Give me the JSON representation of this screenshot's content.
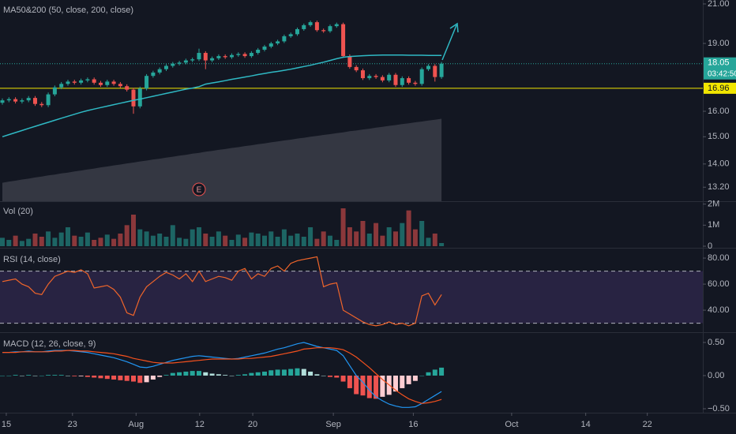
{
  "x_axis": {
    "xlim": [
      -0.36,
      106.87
    ],
    "xticks": [
      {
        "value": 0.6,
        "label": "15"
      },
      {
        "value": 10.7,
        "label": "23"
      },
      {
        "value": 20.4,
        "label": "Aug"
      },
      {
        "value": 30.1,
        "label": "12"
      },
      {
        "value": 38.2,
        "label": "20"
      },
      {
        "value": 50.5,
        "label": "Sep"
      },
      {
        "value": 62.7,
        "label": "16"
      },
      {
        "value": 77.7,
        "label": "Oct"
      },
      {
        "value": 89,
        "label": "14"
      },
      {
        "value": 98.4,
        "label": "22"
      }
    ]
  },
  "chart_data": [
    {
      "type": "candlestick",
      "title": "MA50&200 (50, close, 200, close)",
      "log_scale": true,
      "up_color": "#26a69a",
      "down_color": "#ef5350",
      "ylim": [
        12.74,
        21.21
      ],
      "yticks": [
        {
          "value": 21,
          "label": "21.00"
        },
        {
          "value": 19,
          "label": "19.00"
        },
        {
          "value": 16,
          "label": "16.00"
        },
        {
          "value": 15,
          "label": "15.00"
        },
        {
          "value": 14,
          "label": "14.00"
        },
        {
          "value": 13.2,
          "label": "13.20"
        }
      ],
      "open": [
        16.35,
        16.45,
        16.5,
        16.4,
        16.45,
        16.55,
        16.3,
        16.25,
        16.7,
        17.0,
        17.15,
        17.25,
        17.2,
        17.3,
        17.35,
        17.2,
        17.1,
        17.25,
        17.15,
        17.05,
        16.9,
        16.2,
        16.95,
        17.5,
        17.65,
        17.8,
        17.95,
        18.05,
        18.1,
        18.2,
        18.25,
        18.55,
        18.2,
        18.3,
        18.4,
        18.35,
        18.45,
        18.5,
        18.4,
        18.55,
        18.7,
        18.85,
        19.0,
        19.1,
        19.35,
        19.45,
        19.7,
        19.9,
        20.05,
        19.65,
        19.6,
        19.85,
        19.95,
        18.4,
        17.9,
        17.75,
        17.4,
        17.5,
        17.45,
        17.3,
        17.55,
        17.1,
        17.4,
        17.2,
        17.15,
        17.8,
        17.95,
        17.45
      ],
      "high": [
        16.53,
        16.58,
        16.58,
        16.53,
        16.63,
        16.63,
        16.38,
        16.78,
        17.08,
        17.23,
        17.33,
        17.33,
        17.38,
        17.43,
        17.43,
        17.28,
        17.33,
        17.33,
        17.23,
        17.13,
        16.98,
        17.03,
        17.58,
        17.73,
        17.88,
        18.03,
        18.13,
        18.18,
        18.28,
        18.33,
        18.75,
        18.63,
        18.38,
        18.48,
        18.48,
        18.53,
        18.58,
        18.58,
        18.63,
        18.78,
        18.93,
        19.08,
        19.18,
        19.43,
        19.53,
        19.78,
        19.98,
        20.13,
        20.13,
        19.73,
        19.93,
        20.03,
        20.03,
        18.48,
        17.98,
        17.83,
        17.58,
        17.58,
        17.53,
        17.63,
        17.63,
        17.48,
        17.48,
        17.28,
        17.88,
        18.03,
        18.03,
        18.13
      ],
      "low": [
        16.27,
        16.37,
        16.32,
        16.32,
        16.37,
        16.22,
        16.17,
        16.17,
        16.62,
        16.92,
        17.07,
        17.12,
        17.12,
        17.22,
        17.12,
        17.02,
        17.02,
        17.07,
        16.97,
        16.82,
        15.9,
        16.12,
        16.87,
        17.42,
        17.57,
        17.72,
        17.87,
        17.97,
        18.02,
        18.12,
        18.17,
        17.8,
        18.12,
        18.22,
        18.27,
        18.27,
        18.37,
        18.32,
        18.32,
        18.47,
        18.62,
        18.77,
        18.92,
        19.02,
        19.27,
        19.37,
        19.62,
        19.82,
        19.57,
        19.52,
        19.52,
        19.77,
        18.32,
        17.82,
        17.67,
        17.32,
        17.32,
        17.37,
        17.22,
        17.22,
        17.02,
        17.02,
        17.12,
        17.07,
        17.07,
        17.72,
        17.25,
        17.37
      ],
      "close": [
        16.45,
        16.5,
        16.4,
        16.45,
        16.55,
        16.3,
        16.25,
        16.7,
        17.0,
        17.15,
        17.25,
        17.2,
        17.3,
        17.35,
        17.2,
        17.1,
        17.25,
        17.15,
        17.05,
        16.9,
        16.2,
        16.95,
        17.5,
        17.65,
        17.8,
        17.95,
        18.05,
        18.1,
        18.2,
        18.25,
        18.55,
        18.2,
        18.3,
        18.4,
        18.35,
        18.45,
        18.5,
        18.4,
        18.55,
        18.7,
        18.85,
        19.0,
        19.1,
        19.35,
        19.45,
        19.7,
        19.9,
        20.05,
        19.65,
        19.6,
        19.85,
        19.95,
        18.4,
        17.9,
        17.75,
        17.4,
        17.5,
        17.45,
        17.3,
        17.55,
        17.1,
        17.4,
        17.2,
        17.15,
        17.8,
        17.95,
        17.45,
        18.05
      ],
      "ma50": {
        "color": "#2fb9c4",
        "values": [
          15.0,
          15.08,
          15.16,
          15.24,
          15.32,
          15.4,
          15.48,
          15.56,
          15.64,
          15.72,
          15.8,
          15.88,
          15.96,
          16.03,
          16.09,
          16.15,
          16.21,
          16.27,
          16.33,
          16.39,
          16.45,
          16.5,
          16.56,
          16.62,
          16.68,
          16.74,
          16.8,
          16.86,
          16.92,
          16.97,
          17.03,
          17.14,
          17.19,
          17.24,
          17.29,
          17.35,
          17.4,
          17.45,
          17.5,
          17.56,
          17.61,
          17.66,
          17.7,
          17.75,
          17.8,
          17.86,
          17.92,
          17.98,
          18.05,
          18.12,
          18.2,
          18.28,
          18.35,
          18.38,
          18.4,
          18.42,
          18.43,
          18.44,
          18.45,
          18.45,
          18.45,
          18.45,
          18.44,
          18.44,
          18.44,
          18.43,
          18.43,
          18.43
        ]
      },
      "ma200": {
        "color": "#5d606b",
        "values": [
          13.35,
          13.39,
          13.42,
          13.46,
          13.49,
          13.53,
          13.56,
          13.6,
          13.63,
          13.67,
          13.7,
          13.74,
          13.77,
          13.81,
          13.84,
          13.88,
          13.91,
          13.95,
          13.98,
          14.02,
          14.05,
          14.09,
          14.12,
          14.16,
          14.19,
          14.23,
          14.26,
          14.3,
          14.33,
          14.37,
          14.4,
          14.44,
          14.47,
          14.51,
          14.54,
          14.58,
          14.61,
          14.65,
          14.68,
          14.72,
          14.75,
          14.79,
          14.82,
          14.86,
          14.89,
          14.93,
          14.96,
          15.0,
          15.03,
          15.07,
          15.1,
          15.14,
          15.17,
          15.21,
          15.24,
          15.28,
          15.31,
          15.35,
          15.38,
          15.42,
          15.45,
          15.49,
          15.52,
          15.56,
          15.59,
          15.63,
          15.66,
          15.7
        ]
      },
      "last_price": 18.05,
      "countdown": "03:42:50",
      "hline": {
        "value": 16.96,
        "color": "#f2e600"
      },
      "earnings_marker": "E"
    },
    {
      "type": "bar",
      "title": "Vol (20)",
      "ylim": [
        0,
        2100000
      ],
      "yticks": [
        {
          "value": 2000000,
          "label": "2M"
        },
        {
          "value": 1000000,
          "label": "1M"
        },
        0
      ],
      "values": [
        400000,
        300000,
        500000,
        250000,
        350000,
        600000,
        450000,
        700000,
        400000,
        650000,
        900000,
        500000,
        450000,
        650000,
        300000,
        400000,
        550000,
        350000,
        600000,
        1000000,
        1500000,
        800000,
        700000,
        500000,
        600000,
        450000,
        1000000,
        400000,
        350000,
        800000,
        900000,
        600000,
        450000,
        700000,
        500000,
        300000,
        550000,
        400000,
        650000,
        600000,
        500000,
        700000,
        450000,
        800000,
        500000,
        600000,
        450000,
        900000,
        350000,
        700000,
        500000,
        300000,
        1800000,
        900000,
        700000,
        1200000,
        600000,
        1100000,
        500000,
        900000,
        700000,
        1100000,
        1700000,
        800000,
        1200000,
        400000,
        600000,
        150000
      ]
    },
    {
      "type": "line",
      "title": "RSI (14, close)",
      "color": "#f0652a",
      "ylim": [
        23.7,
        86.7
      ],
      "yticks": [
        {
          "value": 80,
          "label": "80.00"
        },
        {
          "value": 60,
          "label": "60.00"
        },
        {
          "value": 40,
          "label": "40.00"
        }
      ],
      "bands": [
        30,
        70
      ],
      "band_color": "#7e57c2",
      "values": [
        62,
        63,
        64,
        60,
        58,
        53,
        52,
        60,
        66,
        68,
        70,
        69,
        71,
        68,
        57,
        58,
        59,
        56,
        50,
        38,
        36,
        50,
        58,
        62,
        66,
        69,
        67,
        64,
        68,
        62,
        70,
        62,
        64,
        66,
        65,
        63,
        70,
        72,
        64,
        68,
        66,
        72,
        74,
        70,
        76,
        78,
        79,
        80,
        81,
        58,
        60,
        61,
        40,
        37,
        34,
        31,
        29,
        28,
        29,
        31,
        29,
        30,
        28,
        30,
        51,
        53,
        44,
        52
      ]
    },
    {
      "type": "macd",
      "title": "MACD (12, 26, close, 9)",
      "ylim": [
        -0.548,
        0.631
      ],
      "yticks": [
        {
          "value": 0.5,
          "label": "0.50"
        },
        {
          "value": 0,
          "label": "0.00"
        },
        {
          "value": -0.5,
          "label": "−0.50"
        }
      ],
      "macd": {
        "color": "#2196f3",
        "values": [
          0.35,
          0.35,
          0.36,
          0.36,
          0.37,
          0.36,
          0.36,
          0.37,
          0.38,
          0.38,
          0.38,
          0.37,
          0.36,
          0.35,
          0.33,
          0.31,
          0.29,
          0.27,
          0.24,
          0.21,
          0.17,
          0.13,
          0.12,
          0.14,
          0.17,
          0.2,
          0.23,
          0.25,
          0.27,
          0.29,
          0.3,
          0.29,
          0.28,
          0.27,
          0.26,
          0.25,
          0.26,
          0.28,
          0.3,
          0.32,
          0.34,
          0.37,
          0.4,
          0.42,
          0.45,
          0.48,
          0.5,
          0.47,
          0.44,
          0.42,
          0.4,
          0.38,
          0.3,
          0.15,
          0.0,
          -0.1,
          -0.22,
          -0.32,
          -0.38,
          -0.43,
          -0.46,
          -0.48,
          -0.48,
          -0.47,
          -0.42,
          -0.36,
          -0.3,
          -0.24
        ]
      },
      "signal": {
        "color": "#f4511e",
        "values": [
          0.35,
          0.35,
          0.35,
          0.36,
          0.36,
          0.36,
          0.36,
          0.36,
          0.37,
          0.37,
          0.38,
          0.38,
          0.37,
          0.37,
          0.36,
          0.35,
          0.34,
          0.33,
          0.31,
          0.29,
          0.26,
          0.24,
          0.22,
          0.2,
          0.19,
          0.19,
          0.19,
          0.2,
          0.21,
          0.22,
          0.23,
          0.24,
          0.25,
          0.25,
          0.25,
          0.25,
          0.25,
          0.26,
          0.26,
          0.27,
          0.28,
          0.29,
          0.31,
          0.33,
          0.35,
          0.37,
          0.4,
          0.41,
          0.42,
          0.42,
          0.42,
          0.41,
          0.39,
          0.34,
          0.28,
          0.2,
          0.12,
          0.03,
          -0.06,
          -0.14,
          -0.22,
          -0.29,
          -0.35,
          -0.39,
          -0.42,
          -0.41,
          -0.39,
          -0.36
        ]
      },
      "histogram": {
        "colors": [
          "#26a69a",
          "#b2dfdb",
          "#ffcdd2",
          "#ef5350"
        ],
        "values": [
          0,
          0,
          0.01,
          0,
          0.01,
          0,
          0,
          0.01,
          0.01,
          0.01,
          0,
          -0.01,
          -0.01,
          -0.02,
          -0.03,
          -0.04,
          -0.05,
          -0.06,
          -0.07,
          -0.08,
          -0.09,
          -0.11,
          -0.1,
          -0.06,
          -0.02,
          0.01,
          0.04,
          0.05,
          0.06,
          0.07,
          0.07,
          0.05,
          0.03,
          0.02,
          0.01,
          0,
          0.01,
          0.02,
          0.04,
          0.05,
          0.06,
          0.08,
          0.09,
          0.09,
          0.1,
          0.11,
          0.1,
          0.06,
          0.02,
          0,
          -0.02,
          -0.03,
          -0.09,
          -0.19,
          -0.28,
          -0.3,
          -0.34,
          -0.35,
          -0.32,
          -0.29,
          -0.24,
          -0.19,
          -0.13,
          -0.08,
          0,
          0.05,
          0.09,
          0.12
        ]
      }
    }
  ]
}
